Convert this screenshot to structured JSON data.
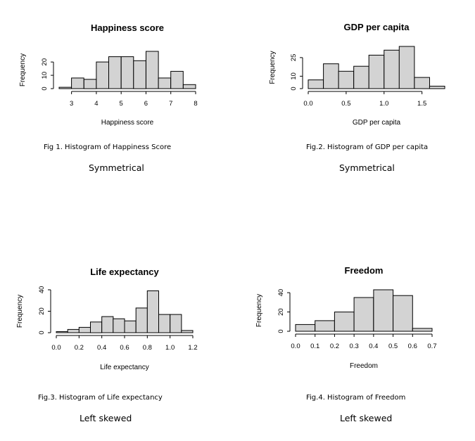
{
  "chart_data": [
    {
      "type": "bar",
      "title": "Happiness score",
      "xlabel": "Happiness score",
      "ylabel": "Frequency",
      "bin_edges": [
        2.5,
        3.0,
        3.5,
        4.0,
        4.5,
        5.0,
        5.5,
        6.0,
        6.5,
        7.0,
        7.5,
        8.0
      ],
      "values": [
        1,
        8,
        7,
        20,
        24,
        24,
        21,
        28,
        8,
        13,
        3
      ],
      "xticks": [
        "3",
        "4",
        "5",
        "6",
        "7",
        "8"
      ],
      "yticks": [
        "0",
        "10",
        "20"
      ],
      "xlim": [
        2.5,
        8.0
      ],
      "ylim": [
        0,
        28
      ]
    },
    {
      "type": "bar",
      "title": "GDP per capita",
      "xlabel": "GDP per capita",
      "ylabel": "Frequency",
      "bin_edges": [
        0.0,
        0.2,
        0.4,
        0.6,
        0.8,
        1.0,
        1.2,
        1.4,
        1.6,
        1.8
      ],
      "values": [
        7,
        20,
        14,
        18,
        27,
        31,
        34,
        9,
        2
      ],
      "xticks": [
        "0.0",
        "0.5",
        "1.0",
        "1.5"
      ],
      "yticks": [
        "0",
        "10",
        "25"
      ],
      "xlim": [
        0.0,
        1.8
      ],
      "ylim": [
        0,
        34
      ]
    },
    {
      "type": "bar",
      "title": "Life expectancy",
      "xlabel": "Life expectancy",
      "ylabel": "Frequency",
      "bin_edges": [
        0.0,
        0.1,
        0.2,
        0.3,
        0.4,
        0.5,
        0.6,
        0.7,
        0.8,
        0.9,
        1.0,
        1.1,
        1.2
      ],
      "values": [
        1,
        3,
        5,
        10,
        15,
        13,
        11,
        23,
        39,
        17,
        17,
        2
      ],
      "xticks": [
        "0.0",
        "0.2",
        "0.4",
        "0.6",
        "0.8",
        "1.0",
        "1.2"
      ],
      "yticks": [
        "0",
        "20",
        "40"
      ],
      "xlim": [
        0.0,
        1.2
      ],
      "ylim": [
        0,
        40
      ]
    },
    {
      "type": "bar",
      "title": "Freedom",
      "xlabel": "Freedom",
      "ylabel": "Frequency",
      "bin_edges": [
        0.0,
        0.1,
        0.2,
        0.3,
        0.4,
        0.5,
        0.6,
        0.7
      ],
      "values": [
        7,
        11,
        20,
        35,
        43,
        37,
        3
      ],
      "xticks": [
        "0.0",
        "0.1",
        "0.2",
        "0.3",
        "0.4",
        "0.5",
        "0.6",
        "0.7"
      ],
      "yticks": [
        "0",
        "20",
        "40"
      ],
      "xlim": [
        0.0,
        0.7
      ],
      "ylim": [
        0,
        43
      ]
    }
  ],
  "captions": [
    "Fig 1. Histogram of Happiness Score",
    "Fig.2. Histogram of GDP per capita",
    "Fig.3. Histogram of Life expectancy",
    "Fig.4. Histogram of Freedom"
  ],
  "remarks": [
    "Symmetrical",
    "Symmetrical",
    "Left skewed",
    "Left skewed"
  ],
  "colors": {
    "bar_fill": "#d3d3d3",
    "bar_stroke": "#000000",
    "background": "#ffffff"
  }
}
